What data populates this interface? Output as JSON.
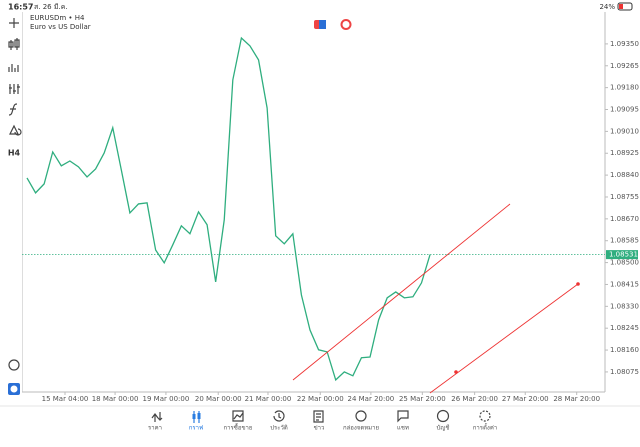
{
  "status_bar": {
    "time": "16:57",
    "date": "ส. 26 มี.ค.",
    "battery": "24%"
  },
  "toolbar": {
    "timeframe": "H4"
  },
  "chart_data": {
    "type": "line",
    "title": "EURUSDm • H4",
    "subtitle": "Euro vs US Dollar",
    "color": "#2fae7f",
    "x": [
      0,
      1,
      2,
      3,
      4,
      5,
      6,
      7,
      8,
      9,
      10,
      11,
      12,
      13,
      14,
      15,
      16,
      17,
      18,
      19,
      20,
      21,
      22,
      23,
      24,
      25,
      26,
      27,
      28,
      29,
      30,
      31,
      32,
      33,
      34,
      35,
      36,
      37,
      38,
      39,
      40,
      41,
      42,
      43,
      44,
      45,
      46,
      47
    ],
    "values": [
      1.08829,
      1.08771,
      1.08806,
      1.0893,
      1.08876,
      1.08895,
      1.08872,
      1.08833,
      1.08864,
      1.08926,
      1.09024,
      1.0886,
      1.08693,
      1.08728,
      1.08732,
      1.08549,
      1.08499,
      1.08569,
      1.08643,
      1.08612,
      1.08697,
      1.08647,
      1.08425,
      1.08666,
      1.0921,
      1.09373,
      1.09342,
      1.09288,
      1.09101,
      1.08604,
      1.08573,
      1.08612,
      1.08374,
      1.08238,
      1.08161,
      1.08153,
      1.08044,
      1.08075,
      1.0806,
      1.0813,
      1.08133,
      1.08277,
      1.08363,
      1.08386,
      1.08363,
      1.08367,
      1.08421,
      1.08531
    ],
    "xlim": [
      0,
      67.4
    ],
    "xticks": [
      {
        "value": 4.43,
        "label": "15 Mar 04:00"
      },
      {
        "value": 10.27,
        "label": "18 Mar 00:00"
      },
      {
        "value": 16.2,
        "label": "19 Mar 00:00"
      },
      {
        "value": 22.3,
        "label": "20 Mar 00:00"
      },
      {
        "value": 28.1,
        "label": "21 Mar 00:00"
      },
      {
        "value": 34.2,
        "label": "22 Mar 00:00"
      },
      {
        "value": 40.1,
        "label": "24 Mar 20:00"
      },
      {
        "value": 46.1,
        "label": "25 Mar 20:00"
      },
      {
        "value": 52.2,
        "label": "26 Mar 20:00"
      },
      {
        "value": 58.1,
        "label": "27 Mar 20:00"
      },
      {
        "value": 64.1,
        "label": "28 Mar 20:00"
      }
    ],
    "ylim": [
      1.07997,
      1.09474
    ],
    "yticks": [
      {
        "value": 1.0935,
        "label": "1.09350"
      },
      {
        "value": 1.09265,
        "label": "1.09265"
      },
      {
        "value": 1.0918,
        "label": "1.09180"
      },
      {
        "value": 1.09095,
        "label": "1.09095"
      },
      {
        "value": 1.0901,
        "label": "1.09010"
      },
      {
        "value": 1.08925,
        "label": "1.08925"
      },
      {
        "value": 1.0884,
        "label": "1.08840"
      },
      {
        "value": 1.08755,
        "label": "1.08755"
      },
      {
        "value": 1.0867,
        "label": "1.08670"
      },
      {
        "value": 1.08585,
        "label": "1.08585"
      },
      {
        "value": 1.085,
        "label": "1.08500"
      },
      {
        "value": 1.08415,
        "label": "1.08415"
      },
      {
        "value": 1.0833,
        "label": "1.08330"
      },
      {
        "value": 1.08245,
        "label": "1.08245"
      },
      {
        "value": 1.0816,
        "label": "1.08160"
      },
      {
        "value": 1.08075,
        "label": "1.08075"
      }
    ],
    "current_price": {
      "value": 1.08531,
      "label": "1.08531"
    }
  },
  "bottom_nav": {
    "items": [
      "ราคา",
      "กราฟ",
      "การซื้อขาย",
      "ประวัติ",
      "ข่าว",
      "กล่องจดหมาย",
      "แชท",
      "บัญชี",
      "การตั้งค่า"
    ]
  }
}
